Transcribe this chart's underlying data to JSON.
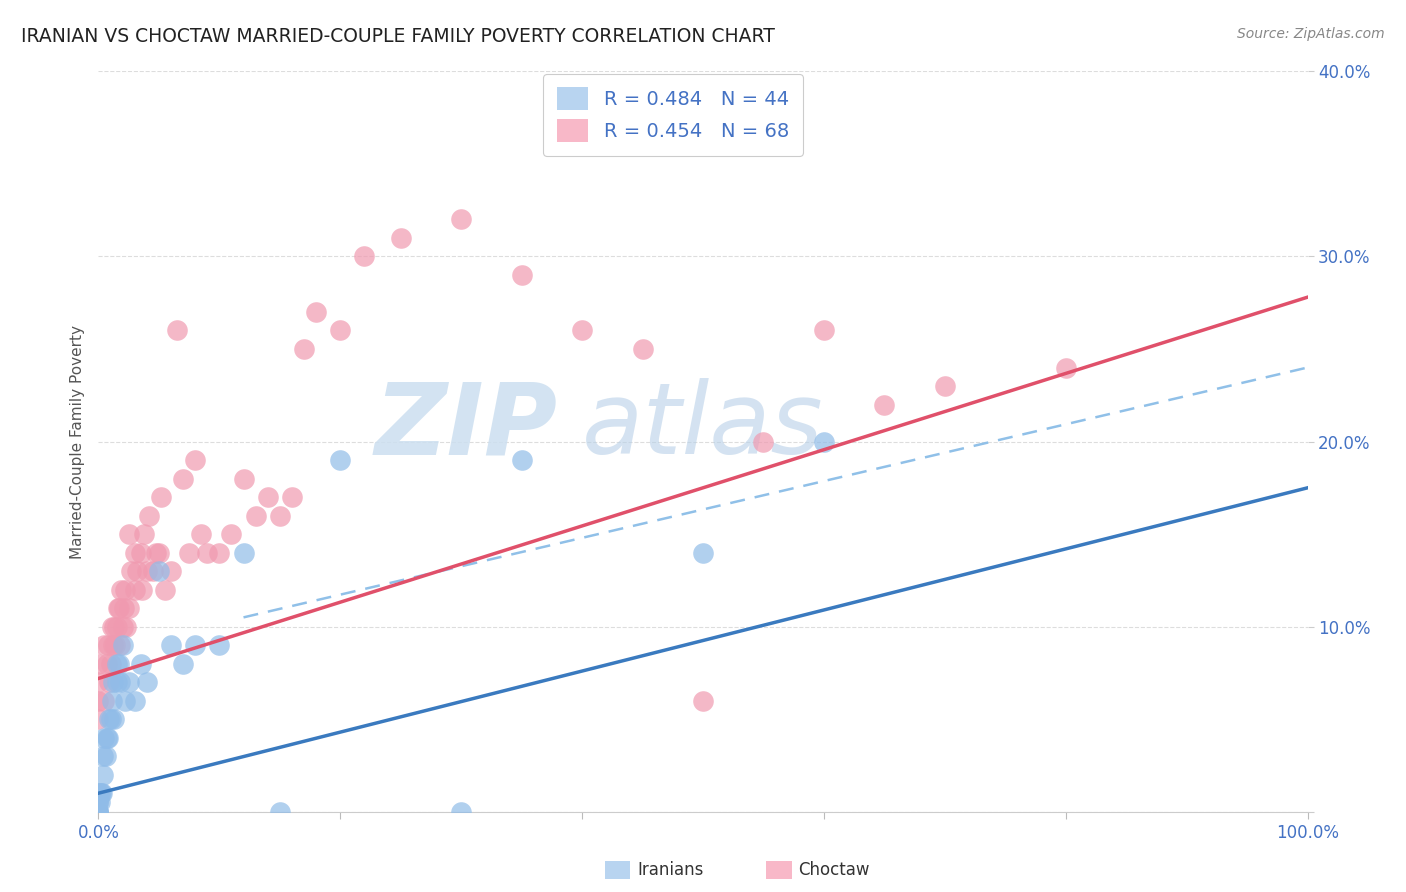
{
  "title": "IRANIAN VS CHOCTAW MARRIED-COUPLE FAMILY POVERTY CORRELATION CHART",
  "source": "Source: ZipAtlas.com",
  "ylabel": "Married-Couple Family Poverty",
  "xlim": [
    0.0,
    1.0
  ],
  "ylim": [
    0.0,
    0.4
  ],
  "xtick_labels": [
    "0.0%",
    "",
    "",
    "",
    "",
    "100.0%"
  ],
  "ytick_labels": [
    "",
    "10.0%",
    "20.0%",
    "30.0%",
    "40.0%"
  ],
  "R_iranians": 0.484,
  "N_iranians": 44,
  "R_choctaw": 0.454,
  "N_choctaw": 68,
  "legend_iranians": "Iranians",
  "legend_choctaw": "Choctaw",
  "iranians_scatter_color": "#90bce8",
  "choctaw_scatter_color": "#f09ab0",
  "iranians_line_color": "#3a7abf",
  "choctaw_line_color": "#e0506a",
  "ci_line_color": "#90c0e8",
  "title_color": "#222222",
  "axis_tick_color": "#4472c4",
  "grid_color": "#dddddd",
  "source_color": "#888888",
  "watermark_zip_color": "#ccdff0",
  "watermark_atlas_color": "#b8d0e8",
  "legend_text_color": "#4472c4",
  "legend_border_color": "#cccccc",
  "ylabel_color": "#555555",
  "iranians_x": [
    0.0,
    0.0,
    0.0,
    0.0,
    0.0,
    0.0,
    0.0,
    0.001,
    0.001,
    0.002,
    0.003,
    0.004,
    0.004,
    0.005,
    0.006,
    0.007,
    0.008,
    0.009,
    0.01,
    0.011,
    0.012,
    0.013,
    0.015,
    0.015,
    0.017,
    0.018,
    0.02,
    0.022,
    0.025,
    0.03,
    0.035,
    0.04,
    0.05,
    0.06,
    0.07,
    0.08,
    0.1,
    0.12,
    0.15,
    0.2,
    0.3,
    0.35,
    0.5,
    0.6
  ],
  "iranians_y": [
    0.0,
    0.0,
    0.0,
    0.0,
    0.005,
    0.005,
    0.01,
    0.005,
    0.01,
    0.01,
    0.01,
    0.02,
    0.03,
    0.04,
    0.03,
    0.04,
    0.04,
    0.05,
    0.05,
    0.06,
    0.07,
    0.05,
    0.07,
    0.08,
    0.08,
    0.07,
    0.09,
    0.06,
    0.07,
    0.06,
    0.08,
    0.07,
    0.13,
    0.09,
    0.08,
    0.09,
    0.09,
    0.14,
    0.0,
    0.19,
    0.0,
    0.19,
    0.14,
    0.2
  ],
  "choctaw_x": [
    0.0,
    0.0,
    0.0,
    0.0,
    0.005,
    0.005,
    0.007,
    0.008,
    0.009,
    0.01,
    0.011,
    0.012,
    0.013,
    0.014,
    0.015,
    0.016,
    0.017,
    0.018,
    0.019,
    0.02,
    0.021,
    0.022,
    0.023,
    0.025,
    0.025,
    0.027,
    0.03,
    0.03,
    0.032,
    0.035,
    0.036,
    0.038,
    0.04,
    0.042,
    0.045,
    0.048,
    0.05,
    0.052,
    0.055,
    0.06,
    0.065,
    0.07,
    0.075,
    0.08,
    0.085,
    0.09,
    0.1,
    0.11,
    0.12,
    0.13,
    0.14,
    0.15,
    0.16,
    0.17,
    0.18,
    0.2,
    0.22,
    0.25,
    0.3,
    0.35,
    0.4,
    0.45,
    0.5,
    0.55,
    0.6,
    0.65,
    0.7,
    0.8
  ],
  "choctaw_y": [
    0.05,
    0.06,
    0.07,
    0.08,
    0.06,
    0.09,
    0.08,
    0.09,
    0.07,
    0.08,
    0.1,
    0.09,
    0.1,
    0.09,
    0.1,
    0.11,
    0.11,
    0.09,
    0.12,
    0.1,
    0.11,
    0.12,
    0.1,
    0.11,
    0.15,
    0.13,
    0.12,
    0.14,
    0.13,
    0.14,
    0.12,
    0.15,
    0.13,
    0.16,
    0.13,
    0.14,
    0.14,
    0.17,
    0.12,
    0.13,
    0.26,
    0.18,
    0.14,
    0.19,
    0.15,
    0.14,
    0.14,
    0.15,
    0.18,
    0.16,
    0.17,
    0.16,
    0.17,
    0.25,
    0.27,
    0.26,
    0.3,
    0.31,
    0.32,
    0.29,
    0.26,
    0.25,
    0.06,
    0.2,
    0.26,
    0.22,
    0.23,
    0.24
  ],
  "ir_line_x0": 0.0,
  "ir_line_x1": 1.0,
  "ir_line_y0": 0.01,
  "ir_line_y1": 0.175,
  "ch_line_x0": 0.0,
  "ch_line_x1": 1.0,
  "ch_line_y0": 0.072,
  "ch_line_y1": 0.278,
  "ci_line_x0": 0.12,
  "ci_line_x1": 1.0,
  "ci_line_y0": 0.105,
  "ci_line_y1": 0.24
}
